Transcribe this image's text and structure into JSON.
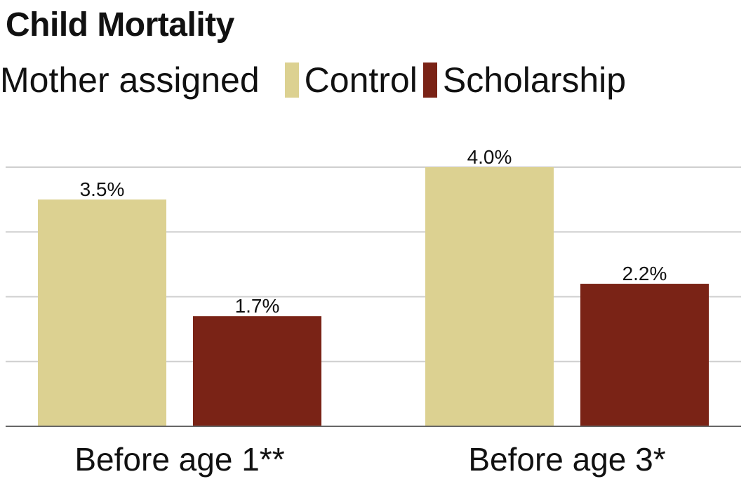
{
  "chart_data": {
    "type": "bar",
    "title": "Child Mortality",
    "legend_title": "Mother assigned",
    "legend_position": "top",
    "categories": [
      "Before age 1**",
      "Before age 3*"
    ],
    "series": [
      {
        "name": "Control",
        "color": "#dcd191",
        "values": [
          3.5,
          4.0
        ],
        "labels": [
          "3.5%",
          "4.0%"
        ]
      },
      {
        "name": "Scholarship",
        "color": "#7a2316",
        "values": [
          1.7,
          2.2
        ],
        "labels": [
          "1.7%",
          "2.2%"
        ]
      }
    ],
    "ylim": [
      0,
      4.0
    ],
    "grid": true,
    "xlabel": "",
    "ylabel": ""
  }
}
